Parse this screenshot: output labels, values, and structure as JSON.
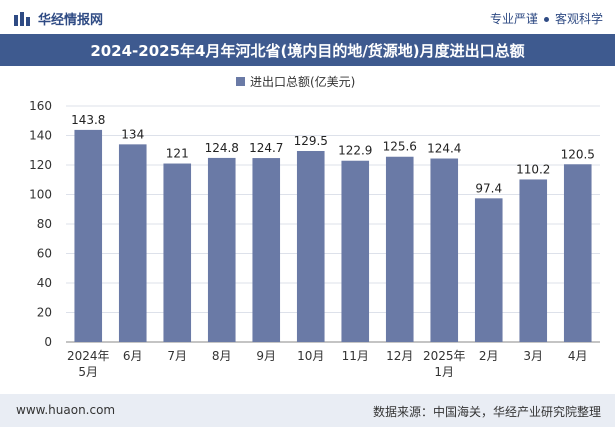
{
  "header": {
    "brand": "华经情报网",
    "tagline_left": "专业严谨",
    "tagline_right": "客观科学"
  },
  "footer": {
    "url": "www.huaon.com",
    "source": "数据来源：中国海关，华经产业研究院整理"
  },
  "colors": {
    "bar": "#6a7aa6",
    "title_bg": "#3e5a8f",
    "brand": "#2f4b84"
  },
  "chart_data": {
    "type": "bar",
    "title": "2024-2025年4月年河北省(境内目的地/货源地)月度进出口总额",
    "legend": "进出口总额(亿美元)",
    "categories": [
      "2024年5月",
      "6月",
      "7月",
      "8月",
      "9月",
      "10月",
      "11月",
      "12月",
      "2025年1月",
      "2月",
      "3月",
      "4月"
    ],
    "values": [
      143.8,
      134,
      121,
      124.8,
      124.7,
      129.5,
      122.9,
      125.6,
      124.4,
      97.4,
      110.2,
      120.5
    ],
    "value_labels": [
      "143.8",
      "134",
      "121",
      "124.8",
      "124.7",
      "129.5",
      "122.9",
      "125.6",
      "124.4",
      "97.4",
      "110.2",
      "120.5"
    ],
    "yticks": [
      "0",
      "20",
      "40",
      "60",
      "80",
      "100",
      "120",
      "140",
      "160"
    ],
    "ylim": [
      0,
      160
    ]
  }
}
